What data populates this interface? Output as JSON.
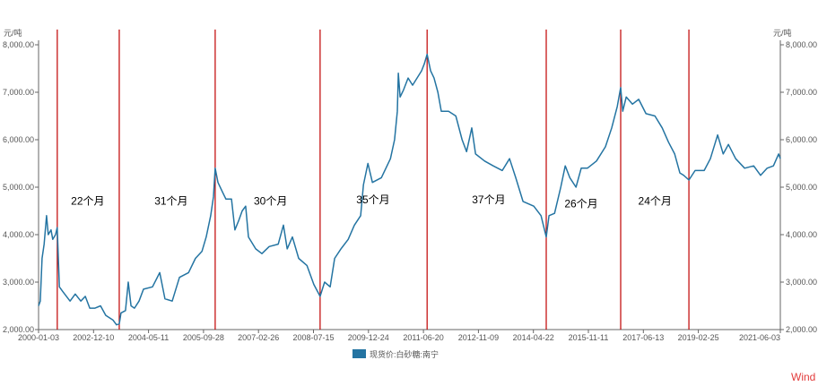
{
  "chart_data": {
    "type": "line",
    "title": "",
    "ylabel_left": "元/吨",
    "ylabel_right": "元/吨",
    "ylim": [
      2000,
      8000
    ],
    "yticks": [
      "2,000.00",
      "3,000.00",
      "4,000.00",
      "5,000.00",
      "6,000.00",
      "7,000.00",
      "8,000.00"
    ],
    "ytick_values": [
      2000,
      3000,
      4000,
      5000,
      6000,
      7000,
      8000
    ],
    "xlim_years_since_2000": [
      0,
      21.42
    ],
    "xticks": [
      "2000-01-03",
      "2002-12-10",
      "2004-05-11",
      "2005-09-28",
      "2007-02-26",
      "2008-07-15",
      "2009-12-24",
      "2011-06-20",
      "2012-11-09",
      "2014-04-22",
      "2015-11-11",
      "2017-06-13",
      "2019-02-25",
      "2021-06-03"
    ],
    "legend": {
      "label": "现货价:白砂糖:南宁",
      "placement": "bottom-center"
    },
    "series": [
      {
        "name": "现货价:白砂糖:南宁",
        "color": "#2474a2",
        "x": [
          0.0,
          0.05,
          0.1,
          0.16,
          0.23,
          0.28,
          0.36,
          0.41,
          0.49,
          0.54,
          0.6,
          0.7,
          0.91,
          1.06,
          1.22,
          1.35,
          1.48,
          1.63,
          1.79,
          1.94,
          2.15,
          2.25,
          2.33,
          2.38,
          2.51,
          2.59,
          2.67,
          2.77,
          2.9,
          3.03,
          3.29,
          3.5,
          3.65,
          3.86,
          4.07,
          4.33,
          4.53,
          4.72,
          4.84,
          4.97,
          5.05,
          5.1,
          5.18,
          5.31,
          5.41,
          5.57,
          5.67,
          5.78,
          5.88,
          5.98,
          6.06,
          6.27,
          6.45,
          6.66,
          6.92,
          7.07,
          7.18,
          7.33,
          7.51,
          7.75,
          7.95,
          8.13,
          8.26,
          8.42,
          8.55,
          8.73,
          8.94,
          9.12,
          9.3,
          9.38,
          9.51,
          9.64,
          9.9,
          10.16,
          10.28,
          10.36,
          10.39,
          10.44,
          10.54,
          10.67,
          10.8,
          10.93,
          11.06,
          11.14,
          11.22,
          11.32,
          11.42,
          11.53,
          11.63,
          11.84,
          12.05,
          12.23,
          12.36,
          12.51,
          12.62,
          12.88,
          13.13,
          13.39,
          13.6,
          13.78,
          13.99,
          14.3,
          14.51,
          14.66,
          14.74,
          14.9,
          15.08,
          15.21,
          15.34,
          15.52,
          15.67,
          15.85,
          16.11,
          16.37,
          16.55,
          16.71,
          16.81,
          16.87,
          16.97,
          17.15,
          17.33,
          17.54,
          17.8,
          18.01,
          18.19,
          18.37,
          18.52,
          18.63,
          18.78,
          18.96,
          19.22,
          19.4,
          19.61,
          19.77,
          19.92,
          20.13,
          20.39,
          20.65,
          20.85,
          21.04,
          21.22,
          21.37,
          21.42
        ],
        "y": [
          2500,
          2600,
          3500,
          3800,
          4400,
          4000,
          4100,
          3900,
          4000,
          4150,
          2900,
          2800,
          2600,
          2750,
          2600,
          2700,
          2450,
          2450,
          2500,
          2300,
          2200,
          2100,
          2120,
          2350,
          2400,
          3000,
          2500,
          2450,
          2600,
          2850,
          2900,
          3200,
          2650,
          2600,
          3100,
          3200,
          3500,
          3650,
          3950,
          4400,
          4800,
          5400,
          5100,
          4900,
          4750,
          4750,
          4100,
          4300,
          4500,
          4600,
          3950,
          3700,
          3600,
          3750,
          3800,
          4200,
          3700,
          3950,
          3500,
          3350,
          2950,
          2700,
          3000,
          2900,
          3500,
          3700,
          3900,
          4200,
          4400,
          5050,
          5500,
          5100,
          5200,
          5600,
          6000,
          6600,
          7400,
          6900,
          7050,
          7300,
          7150,
          7300,
          7450,
          7600,
          7800,
          7450,
          7300,
          7000,
          6600,
          6600,
          6500,
          6000,
          5750,
          6250,
          5700,
          5550,
          5450,
          5350,
          5600,
          5200,
          4700,
          4600,
          4400,
          3950,
          4400,
          4450,
          5000,
          5450,
          5200,
          5000,
          5400,
          5400,
          5550,
          5850,
          6250,
          6700,
          7100,
          6600,
          6900,
          6750,
          6850,
          6550,
          6500,
          6250,
          5950,
          5700,
          5300,
          5250,
          5150,
          5350,
          5350,
          5600,
          6100,
          5700,
          5900,
          5600,
          5400,
          5450,
          5250,
          5400,
          5450,
          5700,
          5600
        ]
      }
    ],
    "markers_years_since_2000": [
      0.54,
      2.33,
      5.1,
      8.13,
      11.22,
      14.66,
      16.81,
      18.78
    ],
    "marker_color": "#c00000",
    "annotations": [
      {
        "text": "22个月",
        "x": 1.42,
        "y": 4630
      },
      {
        "text": "31个月",
        "x": 3.83,
        "y": 4630
      },
      {
        "text": "30个月",
        "x": 6.7,
        "y": 4630
      },
      {
        "text": "35个月",
        "x": 9.66,
        "y": 4660
      },
      {
        "text": "37个月",
        "x": 13.0,
        "y": 4660
      },
      {
        "text": "26个月",
        "x": 15.67,
        "y": 4580
      },
      {
        "text": "24个月",
        "x": 17.8,
        "y": 4630
      }
    ]
  },
  "watermark": "Wind"
}
